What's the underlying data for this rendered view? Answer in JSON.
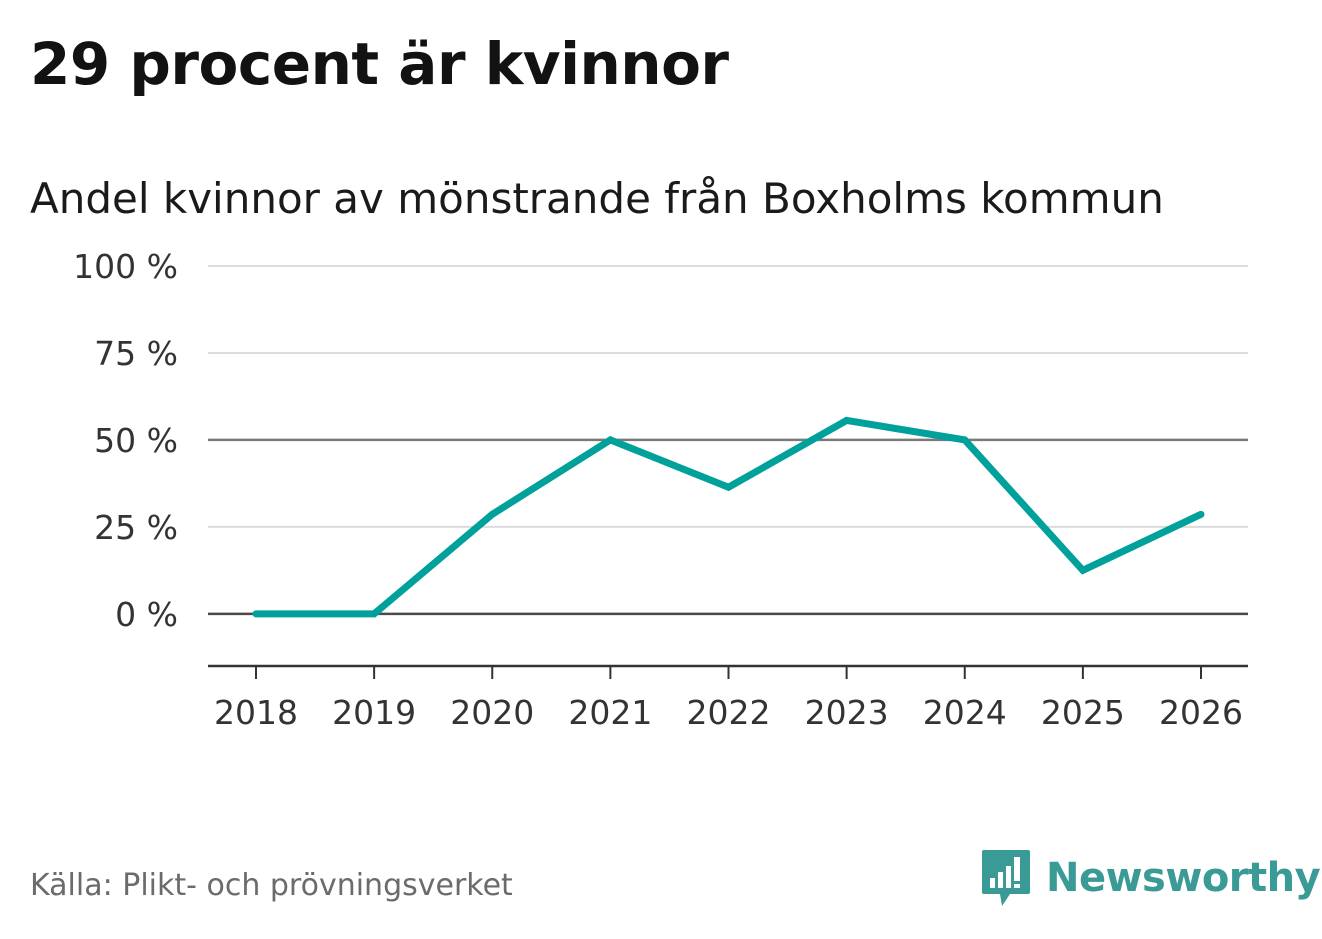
{
  "title": "29 procent är kvinnor",
  "subtitle": "Andel kvinnor av mönstrande från Boxholms kommun",
  "source": "Källa: Plikt- och prövningsverket",
  "brand": {
    "name": "Newsworthy",
    "logo_icon": "chart-bubble-icon",
    "color": "#3a9a96"
  },
  "chart_data": {
    "type": "line",
    "x": [
      "2018",
      "2019",
      "2020",
      "2021",
      "2022",
      "2023",
      "2024",
      "2025",
      "2026"
    ],
    "series": [
      {
        "values": [
          0,
          0,
          28.6,
          50,
          36.4,
          55.6,
          50,
          12.5,
          28.6
        ],
        "color": "#00a19a"
      }
    ],
    "yticks": [
      0,
      25,
      50,
      75,
      100
    ],
    "ytick_labels": [
      "0 %",
      "25 %",
      "50 %",
      "75 %",
      "100 %"
    ],
    "ylim": [
      -15,
      100
    ],
    "grid": true,
    "reference_lines": [
      0,
      50
    ]
  }
}
